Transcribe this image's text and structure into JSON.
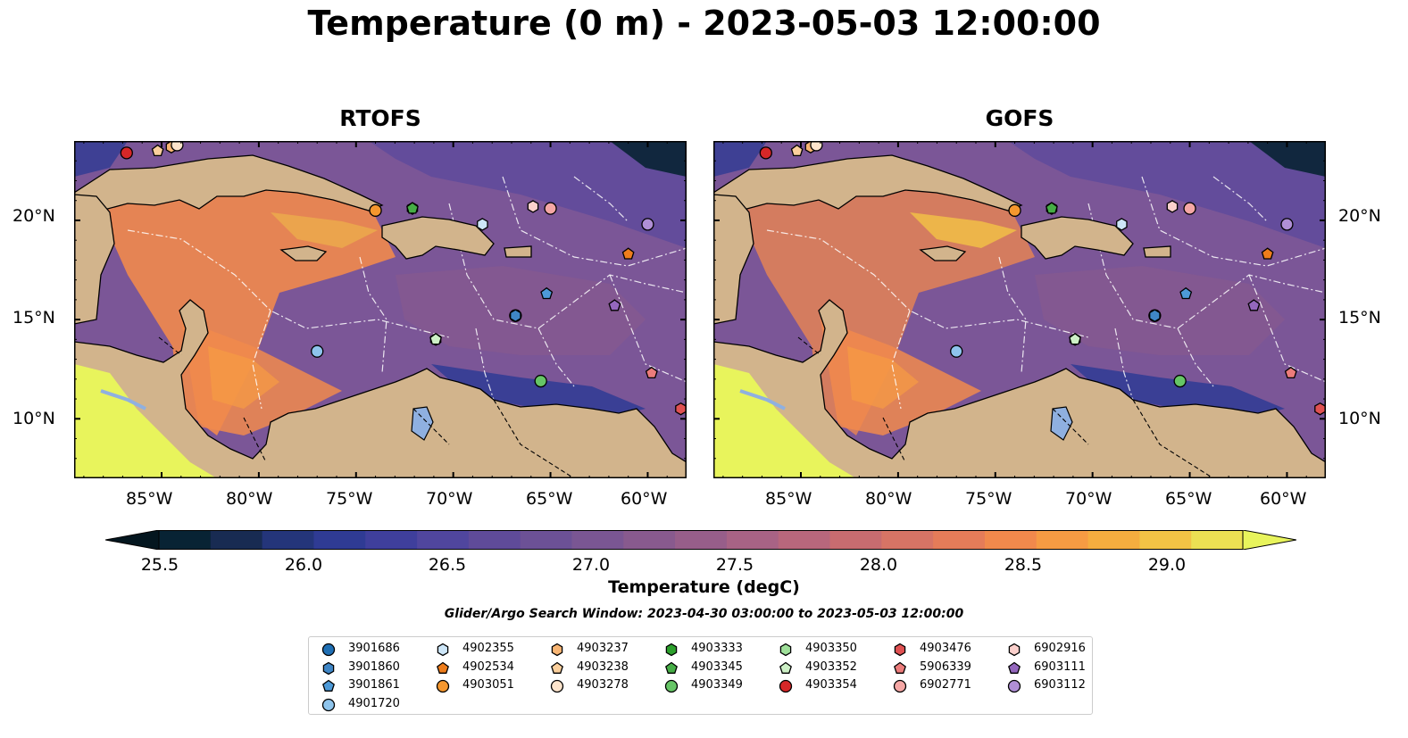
{
  "figure": {
    "title": "Temperature (0 m) - 2023-05-03 12:00:00",
    "panels": [
      {
        "title": "RTOFS"
      },
      {
        "title": "GOFS"
      }
    ],
    "lon_ticks": [
      "85°W",
      "80°W",
      "75°W",
      "70°W",
      "65°W",
      "60°W"
    ],
    "lat_ticks": [
      "20°N",
      "15°N",
      "10°N"
    ],
    "extent": {
      "lon": [
        -89.5,
        -58.0
      ],
      "lat": [
        7.0,
        24.0
      ]
    }
  },
  "colorbar": {
    "label": "Temperature (degC)",
    "ticks": [
      "25.5",
      "26.0",
      "26.5",
      "27.0",
      "27.5",
      "28.0",
      "28.5",
      "29.0"
    ],
    "range": [
      25.25,
      29.25
    ],
    "colors": [
      "#082334",
      "#182b52",
      "#24357a",
      "#2f3b94",
      "#3f3f9c",
      "#50469e",
      "#5f4b99",
      "#6c5196",
      "#7a5693",
      "#885a8e",
      "#975e8a",
      "#a86385",
      "#b8677c",
      "#c86c70",
      "#d77465",
      "#e57c59",
      "#f1894c",
      "#f69b43",
      "#f5ad3f",
      "#f2c345",
      "#ece053"
    ],
    "extend_low": "#04161f",
    "extend_high": "#e8f45c"
  },
  "search_window": "Glider/Argo Search Window: 2023-04-30 03:00:00 to 2023-05-03 12:00:00",
  "map_colors": {
    "land": "#d2b48c",
    "ocean_base": "#7b5697",
    "warm": "#f1894c",
    "hot": "#f2c345",
    "cold": "#2f3b94",
    "lake": "#8fb0e0"
  },
  "floats": [
    {
      "id": "3901686",
      "marker": "circle",
      "color": "#1f6fb4",
      "lon": -66.8,
      "lat": 15.2
    },
    {
      "id": "3901860",
      "marker": "hexagon",
      "color": "#3f86c6",
      "lon": -66.8,
      "lat": 15.2
    },
    {
      "id": "3901861",
      "marker": "pentagon",
      "color": "#4d9ad8",
      "lon": -65.2,
      "lat": 16.3
    },
    {
      "id": "4901720",
      "marker": "circle",
      "color": "#8ec4ec",
      "lon": -77.0,
      "lat": 13.4
    },
    {
      "id": "4902355",
      "marker": "hexagon",
      "color": "#cde6f8",
      "lon": -68.5,
      "lat": 19.8
    },
    {
      "id": "4902534",
      "marker": "pentagon",
      "color": "#ee7d1c",
      "lon": -61.0,
      "lat": 18.3
    },
    {
      "id": "4903051",
      "marker": "circle",
      "color": "#f5972e",
      "lon": -74.0,
      "lat": 20.5
    },
    {
      "id": "4903237",
      "marker": "hexagon",
      "color": "#f8b573",
      "lon": -84.5,
      "lat": 23.7
    },
    {
      "id": "4903238",
      "marker": "pentagon",
      "color": "#fbcf9c",
      "lon": -85.2,
      "lat": 23.5
    },
    {
      "id": "4903278",
      "marker": "circle",
      "color": "#fde4cc",
      "lon": -84.2,
      "lat": 23.8
    },
    {
      "id": "4903333",
      "marker": "hexagon",
      "color": "#2ca02c",
      "lon": -72.1,
      "lat": 20.6
    },
    {
      "id": "4903345",
      "marker": "pentagon",
      "color": "#46ad46",
      "lon": -72.1,
      "lat": 20.6
    },
    {
      "id": "4903349",
      "marker": "circle",
      "color": "#66c566",
      "lon": -65.5,
      "lat": 11.9
    },
    {
      "id": "4903350",
      "marker": "hexagon",
      "color": "#9fe09a",
      "lon": -70.9,
      "lat": 14.0
    },
    {
      "id": "4903352",
      "marker": "pentagon",
      "color": "#cdf0c6",
      "lon": -70.9,
      "lat": 14.0
    },
    {
      "id": "4903354",
      "marker": "circle",
      "color": "#d62728",
      "lon": -86.8,
      "lat": 23.4
    },
    {
      "id": "4903476",
      "marker": "hexagon",
      "color": "#e05152",
      "lon": -58.3,
      "lat": 10.5
    },
    {
      "id": "5906339",
      "marker": "pentagon",
      "color": "#ec7c7b",
      "lon": -59.8,
      "lat": 12.3
    },
    {
      "id": "6902771",
      "marker": "circle",
      "color": "#f5a7a5",
      "lon": -65.0,
      "lat": 20.6
    },
    {
      "id": "6902916",
      "marker": "hexagon",
      "color": "#fbd0cc",
      "lon": -65.9,
      "lat": 20.7
    },
    {
      "id": "6903111",
      "marker": "pentagon",
      "color": "#9467bd",
      "lon": -61.7,
      "lat": 15.7
    },
    {
      "id": "6903112",
      "marker": "circle",
      "color": "#b08fd6",
      "lon": -60.0,
      "lat": 19.8
    }
  ]
}
